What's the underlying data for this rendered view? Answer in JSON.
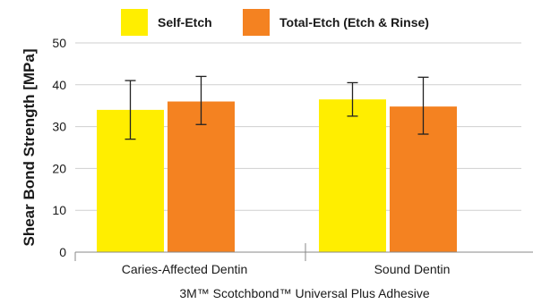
{
  "chart_data": {
    "type": "bar",
    "categories": [
      "Caries-Affected Dentin",
      "Sound Dentin"
    ],
    "series": [
      {
        "name": "Self-Etch",
        "color": "#ffee00",
        "values": [
          34,
          36.5
        ],
        "error_low": [
          27,
          32.5
        ],
        "error_high": [
          41,
          40.5
        ]
      },
      {
        "name": "Total-Etch (Etch & Rinse)",
        "color": "#f48221",
        "values": [
          36,
          34.8
        ],
        "error_low": [
          30.5,
          28.2
        ],
        "error_high": [
          42,
          41.8
        ]
      }
    ],
    "xlabel": "3M™ Scotchbond™ Universal Plus Adhesive",
    "ylabel": "Shear Bond Strength [MPa]",
    "ylim": [
      0,
      50
    ],
    "yticks": [
      "0",
      "10",
      "20",
      "30",
      "40",
      "50"
    ],
    "grid": true,
    "legend_position": "top"
  }
}
